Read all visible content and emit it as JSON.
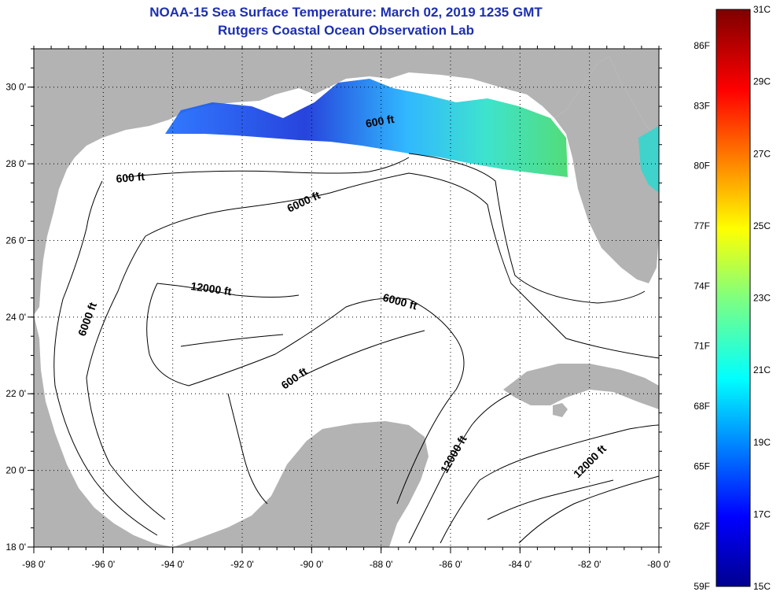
{
  "title": {
    "line1": "NOAA-15 Sea Surface Temperature:  March 02, 2019 1235 GMT",
    "line2": "Rutgers Coastal Ocean Observation Lab"
  },
  "axes": {
    "lon_labels": [
      "-98 0'",
      "-96 0'",
      "-94 0'",
      "-92 0'",
      "-90 0'",
      "-88 0'",
      "-86 0'",
      "-84 0'",
      "-82 0'",
      "-80 0'"
    ],
    "lat_labels": [
      "30 0'",
      "28 0'",
      "26 0'",
      "24 0'",
      "22 0'",
      "20 0'",
      "18 0'"
    ]
  },
  "contours": [
    {
      "label": "600 ft"
    },
    {
      "label": "600 ft"
    },
    {
      "label": "6000 ft"
    },
    {
      "label": "6000 ft"
    },
    {
      "label": "12000 ft"
    },
    {
      "label": "6000 ft"
    },
    {
      "label": "600 ft"
    },
    {
      "label": "12000 ft"
    },
    {
      "label": "12000 ft"
    }
  ],
  "colorbar": {
    "fahrenheit": [
      "86F",
      "83F",
      "80F",
      "77F",
      "74F",
      "71F",
      "68F",
      "65F",
      "62F",
      "59F"
    ],
    "celsius": [
      "31C",
      "29C",
      "27C",
      "25C",
      "23C",
      "21C",
      "19C",
      "17C",
      "15C"
    ]
  },
  "colors": {
    "title": "#1c2fb0",
    "land": "#b3b3b3",
    "water": "#ffffff"
  }
}
